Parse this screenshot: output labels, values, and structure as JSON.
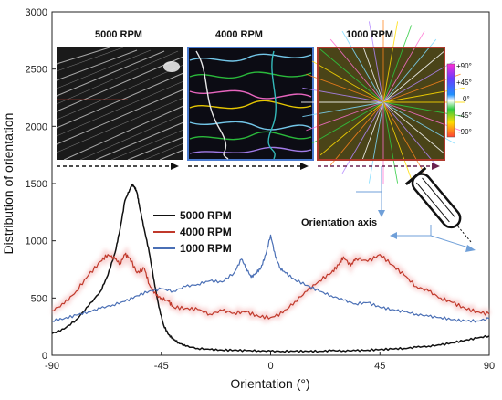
{
  "chart_data": {
    "type": "line",
    "title": "",
    "xlabel": "Orientation (°)",
    "ylabel": "Distribution of orientation",
    "xlim": [
      -90,
      90
    ],
    "ylim": [
      0,
      3000
    ],
    "x_ticks": [
      "-90",
      "-45",
      "0",
      "45",
      "90"
    ],
    "y_ticks": [
      "0",
      "500",
      "1000",
      "1500",
      "2000",
      "2500",
      "3000"
    ],
    "grid": false,
    "legend_position": "center",
    "series": [
      {
        "name": "5000 RPM",
        "color": "#111111",
        "x": [
          -90,
          -85,
          -80,
          -75,
          -70,
          -67,
          -64,
          -62,
          -60,
          -58,
          -57,
          -56,
          -55,
          -54,
          -52,
          -50,
          -48,
          -46,
          -44,
          -42,
          -40,
          -38,
          -35,
          -30,
          -25,
          -20,
          -15,
          -10,
          -5,
          0,
          5,
          10,
          15,
          20,
          25,
          30,
          35,
          40,
          45,
          50,
          55,
          60,
          65,
          70,
          75,
          80,
          85,
          90
        ],
        "y": [
          190,
          230,
          310,
          430,
          560,
          700,
          900,
          1100,
          1350,
          1450,
          1490,
          1470,
          1420,
          1300,
          1100,
          900,
          650,
          420,
          260,
          180,
          140,
          110,
          80,
          60,
          50,
          45,
          45,
          40,
          40,
          35,
          35,
          35,
          35,
          35,
          40,
          40,
          40,
          45,
          50,
          55,
          60,
          70,
          80,
          90,
          110,
          130,
          150,
          170
        ]
      },
      {
        "name": "4000 RPM",
        "color": "#c0392b",
        "x": [
          -90,
          -85,
          -80,
          -75,
          -70,
          -67,
          -64,
          -62,
          -60,
          -58,
          -55,
          -52,
          -50,
          -47,
          -45,
          -42,
          -40,
          -35,
          -30,
          -25,
          -20,
          -15,
          -10,
          -5,
          0,
          5,
          10,
          15,
          20,
          25,
          28,
          30,
          33,
          35,
          40,
          45,
          50,
          55,
          60,
          65,
          70,
          75,
          80,
          85,
          90
        ],
        "y": [
          390,
          450,
          560,
          700,
          820,
          880,
          840,
          800,
          880,
          850,
          720,
          760,
          620,
          520,
          500,
          470,
          420,
          410,
          400,
          360,
          390,
          370,
          380,
          340,
          330,
          370,
          470,
          560,
          650,
          720,
          790,
          860,
          780,
          850,
          820,
          880,
          790,
          700,
          600,
          560,
          500,
          460,
          410,
          380,
          360
        ]
      },
      {
        "name": "1000 RPM",
        "color": "#4a6fb5",
        "x": [
          -90,
          -85,
          -80,
          -75,
          -70,
          -65,
          -60,
          -55,
          -50,
          -45,
          -40,
          -35,
          -30,
          -25,
          -20,
          -15,
          -12,
          -10,
          -8,
          -6,
          -4,
          -2,
          0,
          2,
          4,
          6,
          10,
          15,
          20,
          25,
          30,
          35,
          40,
          45,
          50,
          55,
          60,
          65,
          70,
          75,
          80,
          85,
          90
        ],
        "y": [
          300,
          320,
          350,
          380,
          410,
          440,
          470,
          520,
          560,
          580,
          560,
          600,
          620,
          650,
          640,
          720,
          840,
          760,
          680,
          720,
          760,
          880,
          1050,
          860,
          760,
          720,
          660,
          610,
          560,
          520,
          480,
          450,
          460,
          420,
          400,
          380,
          360,
          340,
          330,
          310,
          300,
          300,
          320
        ]
      }
    ],
    "image_labels": [
      "5000 RPM",
      "4000 RPM",
      "1000 RPM"
    ],
    "colorbar_ticks": [
      "+90°",
      "+45°",
      "0°",
      "-45°",
      "-90°"
    ],
    "annotation": "Orientation axis"
  }
}
